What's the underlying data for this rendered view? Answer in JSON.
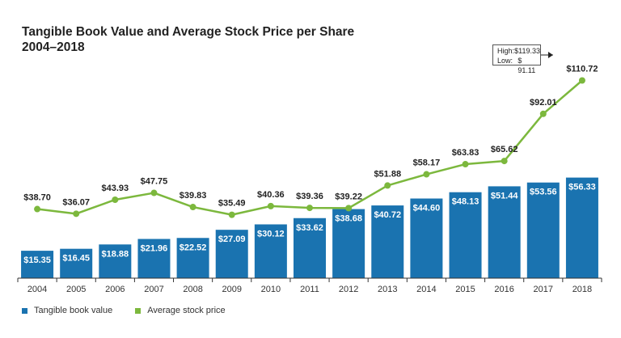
{
  "chart_data": {
    "type": "bar+line",
    "title_line1": "Tangible Book Value and Average Stock Price per Share",
    "title_line2": "2004–2018",
    "categories": [
      "2004",
      "2005",
      "2006",
      "2007",
      "2008",
      "2009",
      "2010",
      "2011",
      "2012",
      "2013",
      "2014",
      "2015",
      "2016",
      "2017",
      "2018"
    ],
    "series": [
      {
        "name": "Tangible book value",
        "type": "bar",
        "color": "#1a73b0",
        "values": [
          15.35,
          16.45,
          18.88,
          21.96,
          22.52,
          27.09,
          30.12,
          33.62,
          38.68,
          40.72,
          44.6,
          48.13,
          51.44,
          53.56,
          56.33
        ],
        "labels": [
          "$15.35",
          "$16.45",
          "$18.88",
          "$21.96",
          "$22.52",
          "$27.09",
          "$30.12",
          "$33.62",
          "$38.68",
          "$40.72",
          "$44.60",
          "$48.13",
          "$51.44",
          "$53.56",
          "$56.33"
        ]
      },
      {
        "name": "Average stock price",
        "type": "line",
        "color": "#7cb83d",
        "values": [
          38.7,
          36.07,
          43.93,
          47.75,
          39.83,
          35.49,
          40.36,
          39.36,
          39.22,
          51.88,
          58.17,
          63.83,
          65.62,
          92.01,
          110.72
        ],
        "labels": [
          "$38.70",
          "$36.07",
          "$43.93",
          "$47.75",
          "$39.83",
          "$35.49",
          "$40.36",
          "$39.36",
          "$39.22",
          "$51.88",
          "$58.17",
          "$63.83",
          "$65.62",
          "$92.01",
          "$110.72"
        ]
      }
    ],
    "ylim": [
      0,
      120
    ],
    "grid": false,
    "legend_position": "bottom-left",
    "annotation": {
      "high_label": "High:",
      "high_value": "$119.33",
      "low_label": "Low:",
      "low_value": "$ 91.11"
    }
  }
}
